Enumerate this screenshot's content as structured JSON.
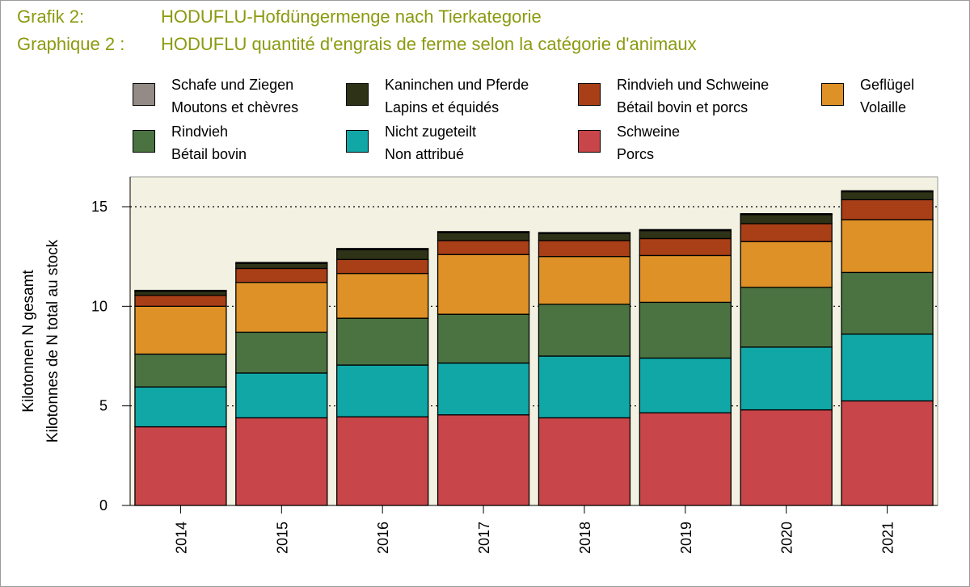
{
  "title": {
    "line1_label": "Grafik 2:",
    "line1_text": "HODUFLU-Hofdüngermenge nach Tierkategorie",
    "line2_label": "Graphique 2 :",
    "line2_text": "HODUFLU quantité d'engrais de ferme selon la catégorie d'animaux"
  },
  "legend": [
    {
      "de": "Schafe und Ziegen",
      "fr": "Moutons et chèvres",
      "color": "#958b86"
    },
    {
      "de": "Kaninchen und Pferde",
      "fr": "Lapins et équidés",
      "color": "#2e3216"
    },
    {
      "de": "Rindvieh und Schweine",
      "fr": "Bétail bovin et porcs",
      "color": "#a93f17"
    },
    {
      "de": "Geflügel",
      "fr": "Volaille",
      "color": "#de9127"
    },
    {
      "de": "Rindvieh",
      "fr": "Bétail bovin",
      "color": "#4b7342"
    },
    {
      "de": "Nicht zugeteilt",
      "fr": "Non attribué",
      "color": "#11a7a7"
    },
    {
      "de": "Schweine",
      "fr": "Porcs",
      "color": "#c84549"
    }
  ],
  "chart_data": {
    "type": "bar",
    "stacked": true,
    "categories": [
      "2014",
      "2015",
      "2016",
      "2017",
      "2018",
      "2019",
      "2020",
      "2021"
    ],
    "ylabel_line1": "Kilotonnen N gesamt",
    "ylabel_line2": "Kilotonnes de N total au stock",
    "ylim": [
      0,
      16.5
    ],
    "yticks": [
      0,
      5,
      10,
      15
    ],
    "grid": "horizontal dotted",
    "plot_background": "#f3f1e1",
    "series": [
      {
        "name": "Schweine",
        "color": "#c84549",
        "values": [
          3.95,
          4.4,
          4.45,
          4.55,
          4.4,
          4.65,
          4.8,
          5.25
        ]
      },
      {
        "name": "Nicht zugeteilt",
        "color": "#11a7a7",
        "values": [
          2.0,
          2.25,
          2.6,
          2.6,
          3.1,
          2.75,
          3.15,
          3.35
        ]
      },
      {
        "name": "Rindvieh",
        "color": "#4b7342",
        "values": [
          1.65,
          2.05,
          2.35,
          2.45,
          2.6,
          2.8,
          3.0,
          3.1
        ]
      },
      {
        "name": "Geflügel",
        "color": "#de9127",
        "values": [
          2.4,
          2.5,
          2.25,
          3.0,
          2.4,
          2.35,
          2.3,
          2.65
        ]
      },
      {
        "name": "Rindvieh und Schweine",
        "color": "#a93f17",
        "values": [
          0.55,
          0.7,
          0.7,
          0.7,
          0.8,
          0.85,
          0.9,
          1.0
        ]
      },
      {
        "name": "Kaninchen und Pferde",
        "color": "#2e3216",
        "values": [
          0.2,
          0.25,
          0.5,
          0.4,
          0.35,
          0.4,
          0.45,
          0.4
        ]
      },
      {
        "name": "Schafe und Ziegen",
        "color": "#958b86",
        "values": [
          0.05,
          0.05,
          0.05,
          0.05,
          0.05,
          0.05,
          0.05,
          0.05
        ]
      }
    ]
  }
}
